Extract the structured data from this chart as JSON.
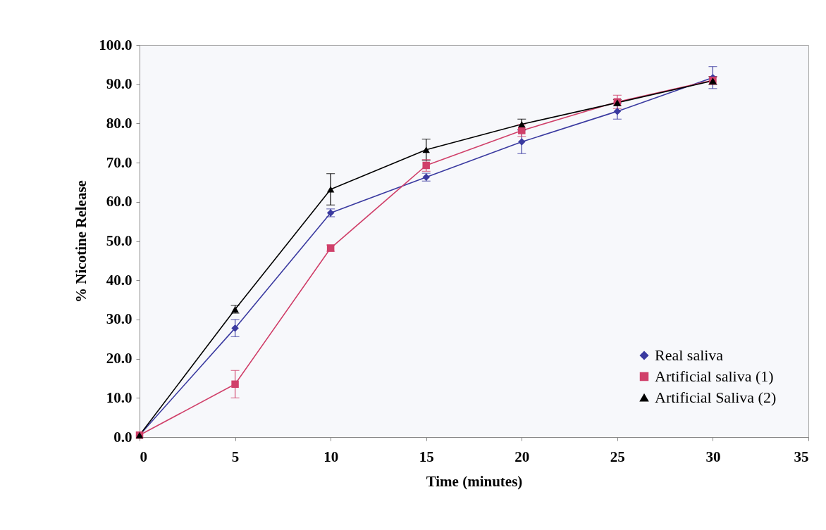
{
  "chart_data": {
    "type": "line",
    "xlabel": "Time (minutes)",
    "ylabel": "% Nicotine Release",
    "x": [
      0,
      5,
      10,
      15,
      20,
      25,
      30
    ],
    "xlim": [
      0,
      35
    ],
    "xticks": [
      0,
      5,
      10,
      15,
      20,
      25,
      30,
      35
    ],
    "ylim": [
      0,
      100
    ],
    "yticks": [
      {
        "value": 0,
        "label": "0.0"
      },
      {
        "value": 10,
        "label": "10.0"
      },
      {
        "value": 20,
        "label": "20.0"
      },
      {
        "value": 30,
        "label": "30.0"
      },
      {
        "value": 40,
        "label": "40.0"
      },
      {
        "value": 50,
        "label": "50.0"
      },
      {
        "value": 60,
        "label": "60.0"
      },
      {
        "value": 70,
        "label": "70.0"
      },
      {
        "value": 80,
        "label": "80.0"
      },
      {
        "value": 90,
        "label": "90.0"
      },
      {
        "value": 100,
        "label": "100.0"
      }
    ],
    "grid": false,
    "legend": "bottom right",
    "series": [
      {
        "name": "Real saliva",
        "color": "#3a3aa0",
        "marker": "diamond",
        "values": [
          0.5,
          27.8,
          57.2,
          66.3,
          75.3,
          83.1,
          91.7
        ],
        "errors": [
          null,
          2.2,
          1,
          1,
          3,
          2,
          2.8
        ]
      },
      {
        "name": "Artificial saliva (1)",
        "color": "#d0406a",
        "marker": "square",
        "values": [
          0.5,
          13.5,
          48.2,
          69.3,
          78.2,
          85.5,
          91
        ],
        "errors": [
          null,
          3.5,
          0.8,
          1.5,
          1.5,
          1.7,
          1
        ]
      },
      {
        "name": "Artificial Saliva (2)",
        "color": "#000000",
        "marker": "triangle",
        "values": [
          0.5,
          32.6,
          63.2,
          73.3,
          79.8,
          85.3,
          90.9
        ],
        "errors": [
          null,
          1,
          4,
          2.7,
          1.3,
          0.8,
          1
        ]
      }
    ]
  }
}
